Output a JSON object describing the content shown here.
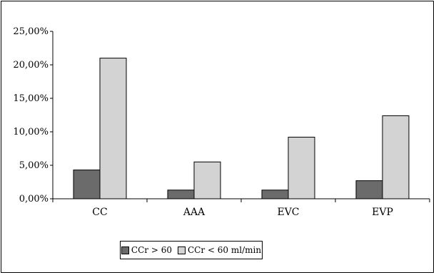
{
  "chart_data": {
    "type": "bar",
    "categories": [
      "CC",
      "AAA",
      "EVC",
      "EVP"
    ],
    "series": [
      {
        "name": "CCr > 60",
        "values": [
          4.3,
          1.3,
          1.3,
          2.7
        ],
        "color": "#6b6b6b"
      },
      {
        "name": "CCr < 60 ml/min",
        "values": [
          21.0,
          5.5,
          9.2,
          12.4
        ],
        "color": "#d3d3d3"
      }
    ],
    "y_ticks": [
      "0,00%",
      "5,00%",
      "10,00%",
      "15,00%",
      "20,00%",
      "25,00%"
    ],
    "ylim": [
      0,
      25
    ],
    "grid": false,
    "legend_position": "bottom"
  }
}
